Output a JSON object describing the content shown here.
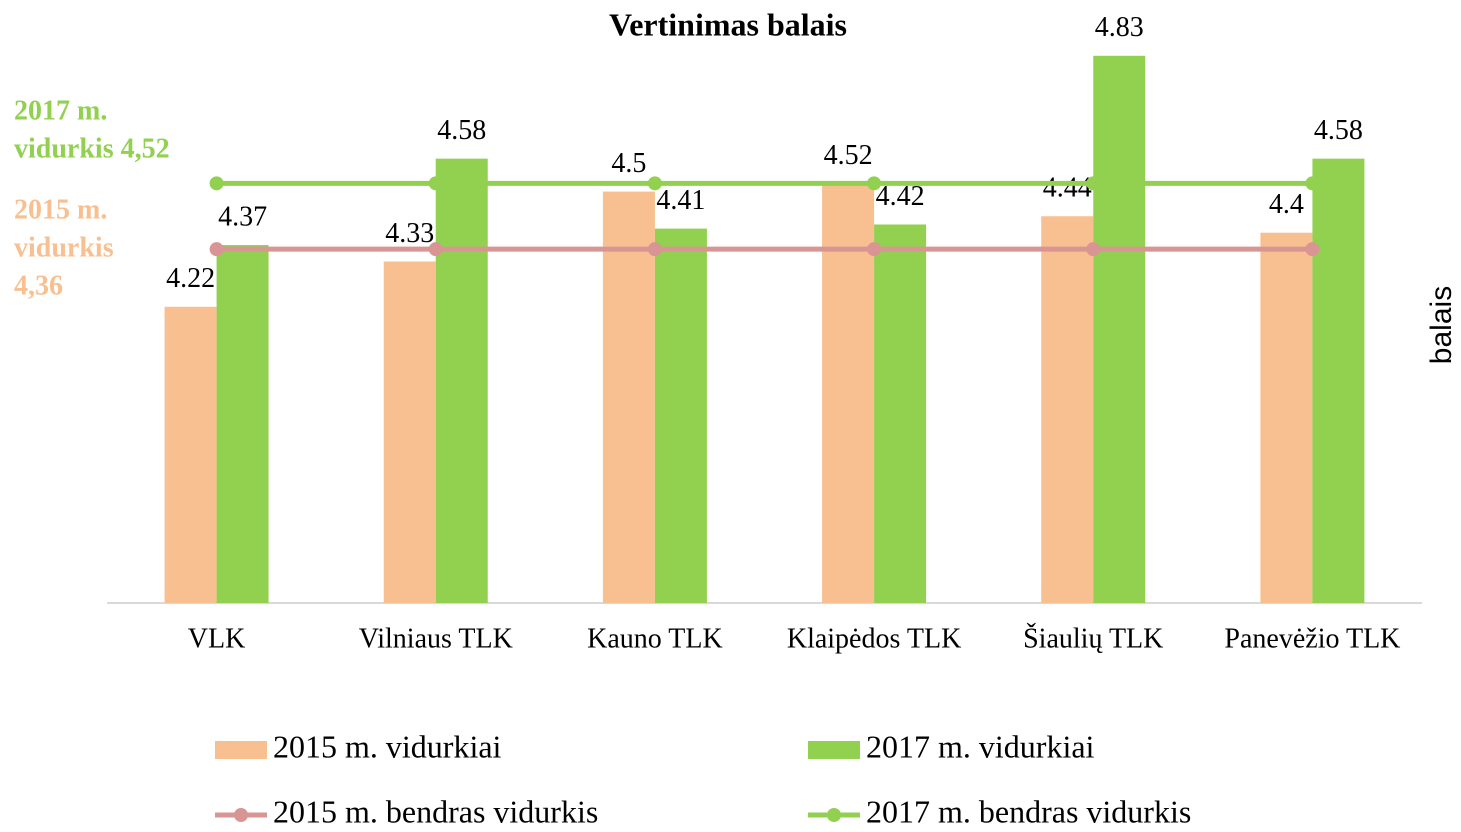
{
  "chart_data": {
    "type": "bar",
    "title": "Vertinimas balais",
    "y_label": "balais",
    "categories": [
      "VLK",
      "Vilniaus TLK",
      "Kauno TLK",
      "Klaipėdos TLK",
      "Šiaulių TLK",
      "Panevėžio TLK"
    ],
    "series": [
      {
        "name": "2015 m. vidurkiai",
        "type": "bar",
        "color": "#f8c090",
        "values": [
          4.22,
          4.33,
          4.5,
          4.52,
          4.44,
          4.4
        ]
      },
      {
        "name": "2017 m. vidurkiai",
        "type": "bar",
        "color": "#92d050",
        "values": [
          4.37,
          4.58,
          4.41,
          4.42,
          4.83,
          4.58
        ]
      },
      {
        "name": "2015 m. bendras vidurkis",
        "type": "line",
        "color": "#d99594",
        "values": [
          4.36,
          4.36,
          4.36,
          4.36,
          4.36,
          4.36
        ]
      },
      {
        "name": "2017 m. bendras vidurkis",
        "type": "line",
        "color": "#92d050",
        "values": [
          4.52,
          4.52,
          4.52,
          4.52,
          4.52,
          4.52
        ]
      }
    ],
    "annotations": [
      {
        "lines": [
          "2017 m.",
          "vidurkis 4,52"
        ],
        "color": "#92d050"
      },
      {
        "lines": [
          "2015 m.",
          "vidurkis",
          "4,36"
        ],
        "color": "#f8c090"
      }
    ],
    "ylim": [
      3.5,
      4.9
    ],
    "grid": false
  }
}
